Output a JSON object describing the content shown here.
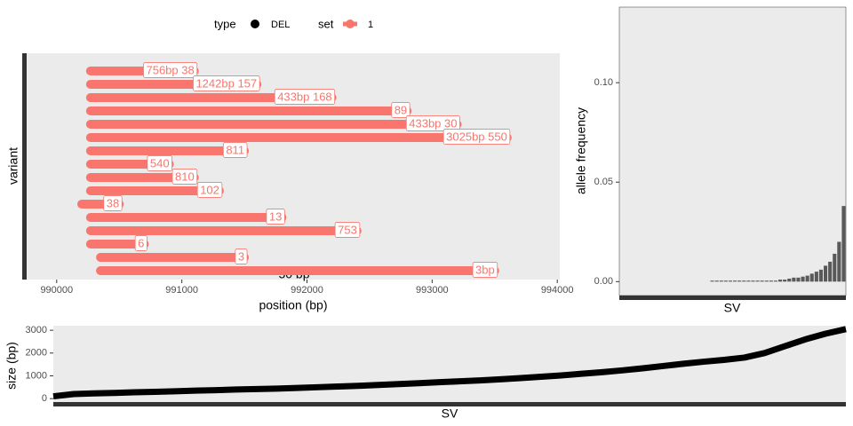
{
  "chart_data": [
    {
      "type": "range",
      "xlabel": "position (bp)",
      "ylabel": "variant",
      "xlim": [
        989760,
        994020
      ],
      "xticks": [
        990000,
        991000,
        992000,
        993000,
        994000
      ],
      "legend": {
        "type_title": "type",
        "type_entries": [
          "DEL"
        ],
        "set_title": "set"
      },
      "annotation": "50 bp",
      "series": [
        {
          "name": "1",
          "color": "#f8766d",
          "start": [
            990270,
            990270,
            990270,
            990270,
            990270,
            990270,
            990270,
            990270,
            990270,
            990270,
            990200,
            990270,
            990270,
            990270,
            990350,
            990350
          ],
          "end": [
            991100,
            991600,
            992200,
            992800,
            993200,
            993600,
            991500,
            990900,
            991100,
            991300,
            990500,
            991800,
            992400,
            990700,
            991500,
            993500
          ],
          "labels": [
            "756bp 38",
            "1242bp 157",
            "433bp 168",
            "89",
            "433bp 30",
            "3025bp 550",
            "811",
            "540",
            "810",
            "102",
            "38",
            "13",
            "753",
            "6",
            "3",
            "3bp"
          ]
        }
      ]
    },
    {
      "type": "bar",
      "xlabel": "SV",
      "ylabel": "allele frequency",
      "color": "#595959",
      "ylim": [
        -0.007,
        0.138
      ],
      "yticks": [
        {
          "value": 0,
          "label": "0.00"
        },
        {
          "value": 0.05,
          "label": "0.05"
        },
        {
          "value": 0.1,
          "label": "0.10"
        }
      ],
      "values": [
        null,
        null,
        null,
        null,
        null,
        null,
        null,
        null,
        null,
        null,
        null,
        null,
        null,
        null,
        null,
        null,
        null,
        null,
        null,
        null,
        0.0005,
        0.0005,
        0.0005,
        0.0005,
        0.0005,
        0.0005,
        0.0005,
        0.0005,
        0.0005,
        0.0005,
        0.0005,
        0.0005,
        0.0005,
        0.0005,
        0.0005,
        0.001,
        0.001,
        0.0015,
        0.002,
        0.002,
        0.0025,
        0.003,
        0.004,
        0.005,
        0.006,
        0.008,
        0.01,
        0.014,
        0.02,
        0.038
      ]
    },
    {
      "type": "line",
      "xlabel": "SV",
      "ylabel": "size (bp)",
      "color": "#000000",
      "ylim": [
        -150,
        3200
      ],
      "yticks": [
        0,
        1000,
        2000,
        3000
      ],
      "values": [
        100,
        200,
        230,
        250,
        280,
        300,
        320,
        350,
        370,
        400,
        420,
        440,
        470,
        500,
        530,
        560,
        600,
        640,
        680,
        720,
        760,
        800,
        850,
        900,
        960,
        1020,
        1090,
        1160,
        1240,
        1330,
        1430,
        1530,
        1620,
        1700,
        1800,
        2000,
        2300,
        2600,
        2850,
        3050
      ]
    }
  ]
}
